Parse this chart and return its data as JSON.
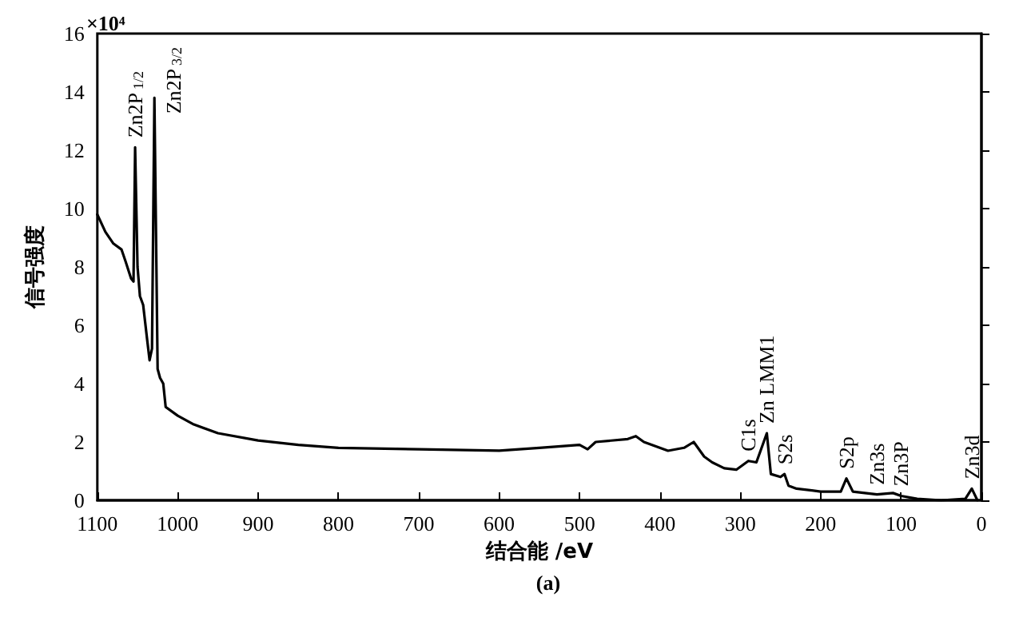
{
  "chart_data": {
    "type": "line",
    "xlabel": "结合能 /eV",
    "ylabel": "信号强度",
    "xlim": [
      1100,
      0
    ],
    "xticks": [
      1100,
      1000,
      900,
      800,
      700,
      600,
      500,
      400,
      300,
      200,
      100,
      0
    ],
    "ylim": [
      0,
      16
    ],
    "yticks": [
      0,
      2,
      4,
      6,
      8,
      10,
      12,
      14,
      16
    ],
    "grid": false,
    "marker": "none",
    "line_style": "solid",
    "annotations": [
      "×10⁴",
      "(a)",
      {
        "text": "Zn2P$_{1/2}$",
        "x": 1053,
        "y": 12.1
      },
      {
        "text": "Zn2P$_{3/2}$",
        "x": 1029,
        "y": 13.8
      },
      {
        "text": "C1s",
        "x": 290,
        "y": 1.35
      },
      {
        "text": "Zn LMM1",
        "x": 267,
        "y": 2.3
      },
      {
        "text": "S2s",
        "x": 245,
        "y": 0.9
      },
      {
        "text": "S2p",
        "x": 168,
        "y": 0.75
      },
      {
        "text": "Zn3s",
        "x": 130,
        "y": 0.2
      },
      {
        "text": "Zn3P",
        "x": 100,
        "y": 0.15
      },
      {
        "text": "Zn3d",
        "x": 12,
        "y": 0.4
      }
    ],
    "series": [
      {
        "color": "#000000",
        "x": [
          1100,
          1090,
          1080,
          1070,
          1065,
          1058,
          1055,
          1053,
          1050,
          1047,
          1043,
          1038,
          1035,
          1032,
          1029,
          1025,
          1022,
          1018,
          1015,
          1000,
          980,
          950,
          900,
          850,
          800,
          700,
          600,
          550,
          500,
          490,
          480,
          440,
          430,
          420,
          390,
          370,
          358,
          345,
          335,
          320,
          305,
          290,
          280,
          267,
          262,
          250,
          245,
          240,
          230,
          200,
          175,
          168,
          160,
          130,
          110,
          100,
          80,
          50,
          20,
          12,
          5
        ],
        "values": [
          9.8,
          9.2,
          8.8,
          8.6,
          8.2,
          7.6,
          7.5,
          12.1,
          8.0,
          7.0,
          6.7,
          5.5,
          4.8,
          5.2,
          13.8,
          4.5,
          4.2,
          4.0,
          3.2,
          2.9,
          2.6,
          2.3,
          2.05,
          1.9,
          1.8,
          1.75,
          1.7,
          1.8,
          1.9,
          1.75,
          2.0,
          2.1,
          2.2,
          2.0,
          1.7,
          1.8,
          2.0,
          1.5,
          1.3,
          1.1,
          1.05,
          1.35,
          1.3,
          2.3,
          0.9,
          0.8,
          0.9,
          0.5,
          0.4,
          0.3,
          0.3,
          0.75,
          0.3,
          0.2,
          0.25,
          0.15,
          0.05,
          0.0,
          0.05,
          0.4,
          0.0
        ]
      }
    ]
  }
}
